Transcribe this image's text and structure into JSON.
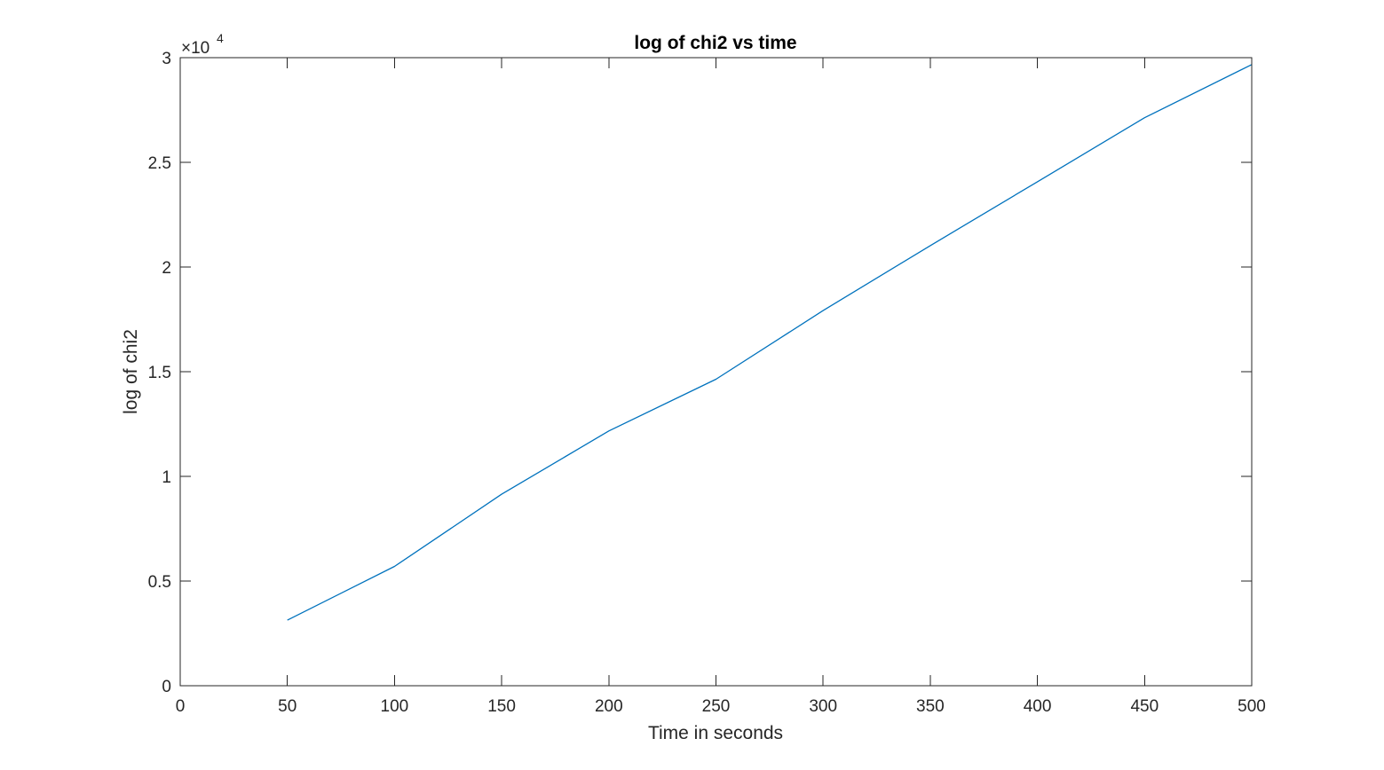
{
  "chart_data": {
    "type": "line",
    "title": "log of chi2 vs time",
    "xlabel": "Time in seconds",
    "ylabel": "log of chi2",
    "xlim": [
      0,
      500
    ],
    "ylim": [
      0,
      30000
    ],
    "x_ticks": [
      0,
      50,
      100,
      150,
      200,
      250,
      300,
      350,
      400,
      450,
      500
    ],
    "x_tick_labels": [
      "0",
      "50",
      "100",
      "150",
      "200",
      "250",
      "300",
      "350",
      "400",
      "450",
      "500"
    ],
    "y_ticks": [
      0,
      5000,
      10000,
      15000,
      20000,
      25000,
      30000
    ],
    "y_tick_labels": [
      "0",
      "0.5",
      "1",
      "1.5",
      "2",
      "2.5",
      "3"
    ],
    "y_exponent_label": {
      "base": "×10",
      "power": "4"
    },
    "grid": false,
    "box": true,
    "series": [
      {
        "color": "#0072BD",
        "x": [
          50,
          100,
          150,
          200,
          250,
          300,
          350,
          400,
          450,
          500
        ],
        "y": [
          3130,
          5700,
          9150,
          12170,
          14640,
          17920,
          21020,
          24070,
          27130,
          29670
        ]
      }
    ]
  }
}
